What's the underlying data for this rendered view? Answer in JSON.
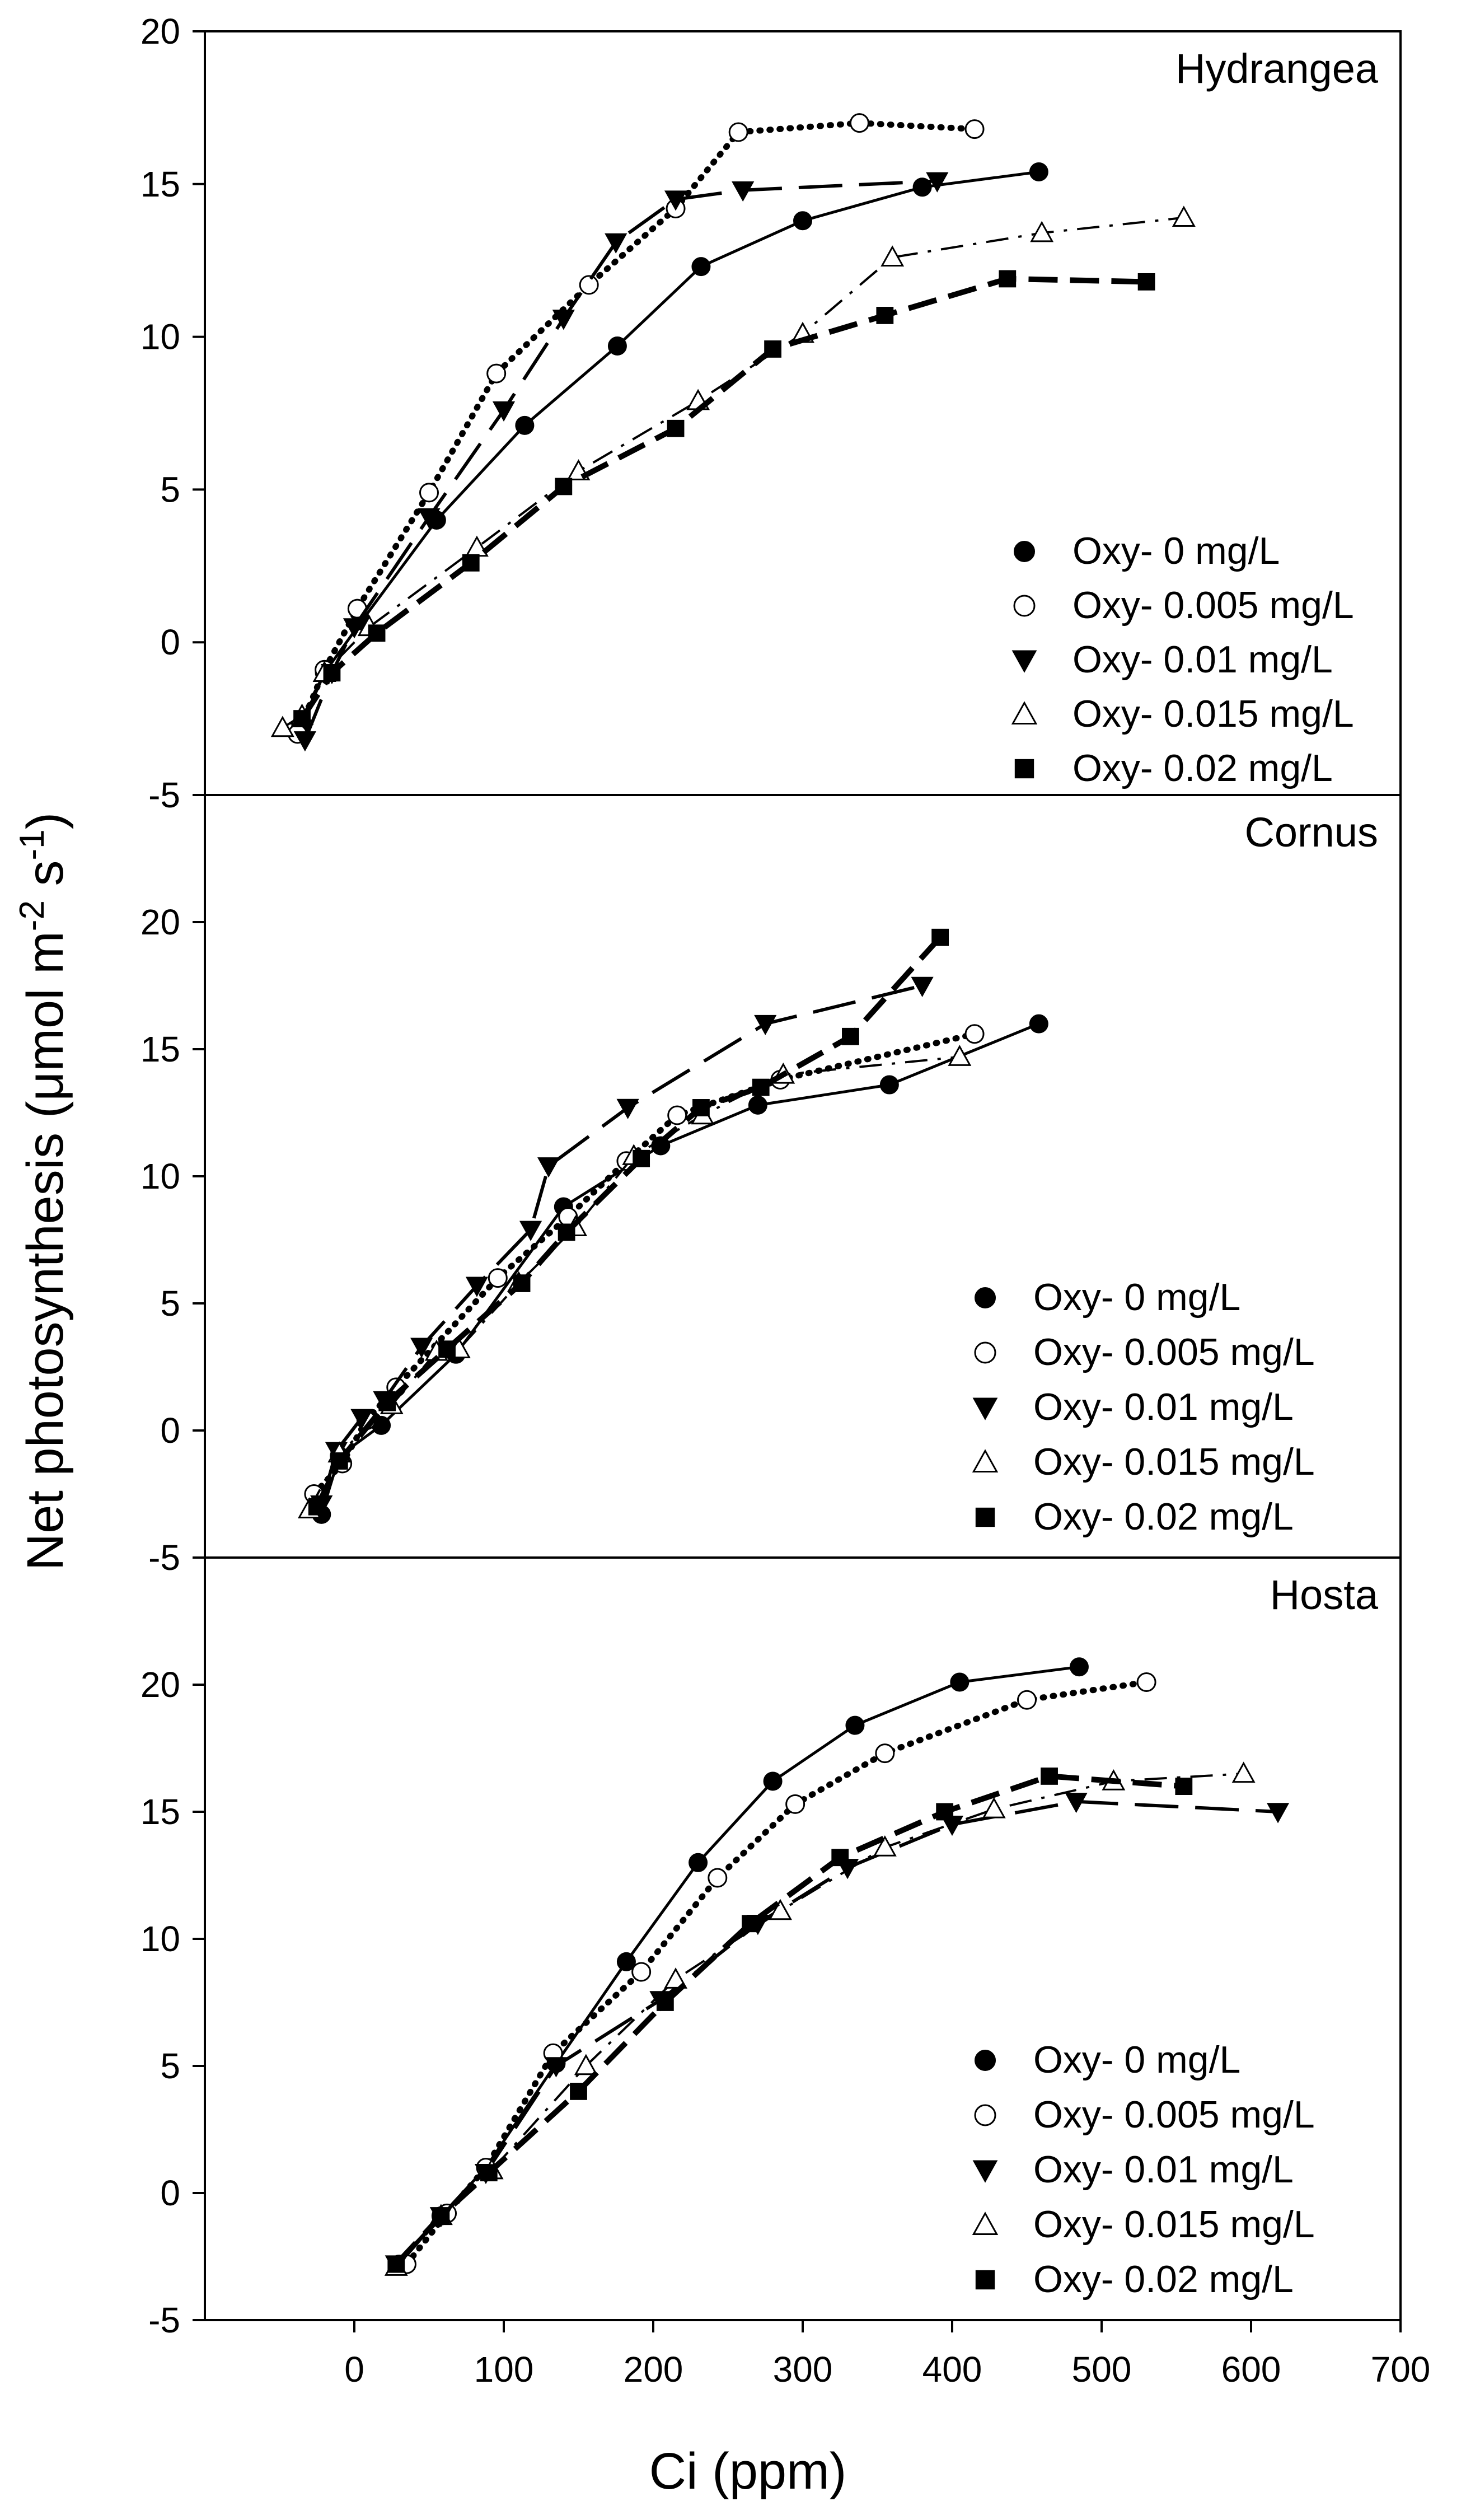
{
  "figure": {
    "ylabel_main": "Net photosynthesis (μmol m",
    "ylabel_exp1": "-2",
    "ylabel_mid": " s",
    "ylabel_exp2": "-1",
    "ylabel_close": ")"
  },
  "chart_data": [
    {
      "type": "line",
      "title": "Hydrangea",
      "xlabel": "Ci (ppm)",
      "ylabel": "Net photosynthesis (μmol m-2 s-1)",
      "xlim": [
        -100,
        700
      ],
      "ylim": [
        -5,
        20
      ],
      "x_ticks": [
        0,
        100,
        200,
        300,
        400,
        500,
        600,
        700
      ],
      "x_tick_labels": [
        "0",
        "100",
        "200",
        "300",
        "400",
        "500",
        "600",
        "700"
      ],
      "y_ticks": [
        -5,
        0,
        5,
        10,
        15,
        20
      ],
      "y_tick_labels": [
        "-5",
        "0",
        "5",
        "10",
        "15",
        "20"
      ],
      "legend_position": "right",
      "series": [
        {
          "name": "Oxy- 0 mg/L",
          "marker": "circle-filled",
          "line": "solid",
          "x": [
            -36,
            -20,
            5,
            55,
            114,
            176,
            232,
            300,
            380,
            458
          ],
          "y": [
            -2.8,
            -1.0,
            0.7,
            4.0,
            7.1,
            9.7,
            12.3,
            13.8,
            14.9,
            15.4
          ]
        },
        {
          "name": "Oxy- 0.005 mg/L",
          "marker": "circle-open",
          "line": "dotted",
          "x": [
            -38,
            -20,
            2,
            50,
            95,
            157,
            215,
            257,
            338,
            415
          ],
          "y": [
            -3.0,
            -0.9,
            1.1,
            4.9,
            8.8,
            11.7,
            14.2,
            16.7,
            17.0,
            16.8
          ]
        },
        {
          "name": "Oxy- 0.01 mg/L",
          "marker": "triangle-down-filled",
          "line": "longdash",
          "x": [
            -33,
            -15,
            0,
            50,
            100,
            140,
            175,
            215,
            260,
            390
          ],
          "y": [
            -3.2,
            -1.0,
            0.5,
            4.1,
            7.6,
            10.6,
            13.1,
            14.5,
            14.8,
            15.1
          ]
        },
        {
          "name": "Oxy- 0.015 mg/L",
          "marker": "triangle-up-open",
          "line": "dashdot",
          "x": [
            -48,
            -35,
            -20,
            10,
            82,
            150,
            230,
            300,
            360,
            460,
            555
          ],
          "y": [
            -2.8,
            -2.4,
            -1.0,
            0.5,
            3.1,
            5.6,
            7.9,
            10.1,
            12.6,
            13.4,
            13.9
          ]
        },
        {
          "name": "Oxy- 0.02 mg/L",
          "marker": "square-filled",
          "line": "dashed",
          "x": [
            -35,
            -15,
            15,
            78,
            140,
            215,
            280,
            355,
            437,
            530
          ],
          "y": [
            -2.5,
            -1.0,
            0.3,
            2.6,
            5.1,
            7.0,
            9.6,
            10.7,
            11.9,
            11.8
          ]
        }
      ]
    },
    {
      "type": "line",
      "title": "Cornus",
      "xlabel": "Ci (ppm)",
      "ylabel": "Net photosynthesis (μmol m-2 s-1)",
      "xlim": [
        -100,
        700
      ],
      "ylim": [
        -5,
        25
      ],
      "x_ticks": [
        0,
        100,
        200,
        300,
        400,
        500,
        600,
        700
      ],
      "y_ticks": [
        -5,
        0,
        5,
        10,
        15,
        20
      ],
      "y_tick_labels": [
        "-5",
        "0",
        "5",
        "10",
        "15",
        "20"
      ],
      "legend_position": "right",
      "series": [
        {
          "name": "Oxy- 0 mg/L",
          "marker": "circle-filled",
          "line": "solid",
          "x": [
            -22,
            -10,
            18,
            68,
            140,
            205,
            270,
            358,
            458
          ],
          "y": [
            -3.3,
            -1.0,
            0.2,
            3.0,
            8.8,
            11.2,
            12.8,
            13.6,
            16.0
          ]
        },
        {
          "name": "Oxy- 0.005 mg/L",
          "marker": "circle-open",
          "line": "dotted",
          "x": [
            -27,
            -8,
            8,
            28,
            96,
            143,
            182,
            216,
            285,
            415
          ],
          "y": [
            -2.5,
            -1.3,
            0.4,
            1.7,
            6.0,
            8.4,
            10.6,
            12.4,
            13.8,
            15.6
          ]
        },
        {
          "name": "Oxy- 0.01 mg/L",
          "marker": "triangle-down-filled",
          "line": "longdash",
          "x": [
            -22,
            -12,
            5,
            20,
            45,
            82,
            118,
            130,
            183,
            275,
            380
          ],
          "y": [
            -2.9,
            -0.8,
            0.5,
            1.2,
            3.3,
            5.7,
            7.9,
            10.4,
            12.7,
            16.0,
            17.5
          ]
        },
        {
          "name": "Oxy- 0.015 mg/L",
          "marker": "triangle-up-open",
          "line": "dashdot",
          "x": [
            -30,
            -10,
            25,
            55,
            70,
            110,
            148,
            187,
            233,
            287,
            405
          ],
          "y": [
            -3.1,
            -0.9,
            1.0,
            3.1,
            3.2,
            5.8,
            8.0,
            10.8,
            12.4,
            14.0,
            14.7
          ]
        },
        {
          "name": "Oxy- 0.02 mg/L",
          "marker": "square-filled",
          "line": "dashed",
          "x": [
            -25,
            -10,
            22,
            62,
            112,
            142,
            192,
            232,
            272,
            332,
            392
          ],
          "y": [
            -3.0,
            -1.2,
            1.1,
            3.2,
            5.8,
            7.8,
            10.7,
            12.7,
            13.5,
            15.5,
            19.4
          ]
        }
      ]
    },
    {
      "type": "line",
      "title": "Hosta",
      "xlabel": "Ci (ppm)",
      "ylabel": "Net photosynthesis (μmol m-2 s-1)",
      "xlim": [
        -100,
        700
      ],
      "ylim": [
        -5,
        25
      ],
      "x_ticks": [
        0,
        100,
        200,
        300,
        400,
        500,
        600,
        700
      ],
      "x_tick_labels": [
        "0",
        "100",
        "200",
        "300",
        "400",
        "500",
        "600",
        "700"
      ],
      "y_ticks": [
        -5,
        0,
        5,
        10,
        15,
        20
      ],
      "y_tick_labels": [
        "-5",
        "0",
        "5",
        "10",
        "15",
        "20"
      ],
      "legend_position": "bottom-right",
      "series": [
        {
          "name": "Oxy- 0 mg/L",
          "marker": "circle-filled",
          "line": "solid",
          "x": [
            30,
            58,
            88,
            135,
            182,
            230,
            280,
            335,
            405,
            485
          ],
          "y": [
            -2.8,
            -0.9,
            1.0,
            5.1,
            9.1,
            13.0,
            16.2,
            18.4,
            20.1,
            20.7
          ]
        },
        {
          "name": "Oxy- 0.005 mg/L",
          "marker": "circle-open",
          "line": "dotted",
          "x": [
            35,
            62,
            88,
            133,
            192,
            243,
            295,
            355,
            450,
            530
          ],
          "y": [
            -2.8,
            -0.8,
            1.0,
            5.5,
            8.7,
            12.4,
            15.3,
            17.3,
            19.4,
            20.1
          ]
        },
        {
          "name": "Oxy- 0.01 mg/L",
          "marker": "triangle-down-filled",
          "line": "longdash",
          "x": [
            28,
            58,
            88,
            135,
            205,
            270,
            330,
            400,
            483,
            618
          ],
          "y": [
            -2.8,
            -0.9,
            0.8,
            5.0,
            7.6,
            10.6,
            12.8,
            14.5,
            15.4,
            15.0
          ]
        },
        {
          "name": "Oxy- 0.015 mg/L",
          "marker": "triangle-up-open",
          "line": "dashdot",
          "x": [
            28,
            58,
            92,
            155,
            215,
            285,
            355,
            428,
            508,
            595
          ],
          "y": [
            -2.9,
            -0.9,
            0.9,
            5.0,
            8.4,
            11.1,
            13.6,
            15.1,
            16.2,
            16.5
          ]
        },
        {
          "name": "Oxy- 0.02 mg/L",
          "marker": "square-filled",
          "line": "dashed",
          "x": [
            28,
            58,
            90,
            150,
            208,
            265,
            325,
            395,
            465,
            555
          ],
          "y": [
            -2.8,
            -0.9,
            0.8,
            4.0,
            7.5,
            10.6,
            13.2,
            15.0,
            16.4,
            16.0
          ]
        }
      ]
    }
  ]
}
